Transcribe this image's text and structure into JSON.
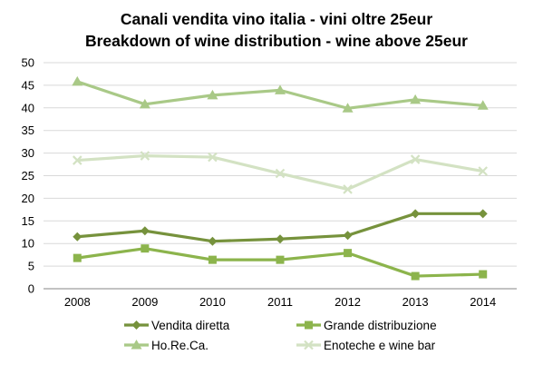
{
  "chart_data": {
    "type": "line",
    "title": "Canali vendita vino italia - vini oltre 25eur",
    "subtitle": "Breakdown of wine distribution - wine above 25eur",
    "xlabel": "",
    "ylabel": "",
    "categories": [
      "2008",
      "2009",
      "2010",
      "2011",
      "2012",
      "2013",
      "2014"
    ],
    "ylim": [
      0,
      50
    ],
    "yticks": [
      0,
      5,
      10,
      15,
      20,
      25,
      30,
      35,
      40,
      45,
      50
    ],
    "grid": "horizontal",
    "legend": "bottom",
    "series": [
      {
        "name": "Vendita diretta",
        "values": [
          11.5,
          12.8,
          10.5,
          11.0,
          11.8,
          16.6,
          16.6
        ],
        "color": "#76923c",
        "marker": "diamond"
      },
      {
        "name": "Grande distribuzione",
        "values": [
          6.8,
          8.9,
          6.4,
          6.4,
          7.9,
          2.8,
          3.2
        ],
        "color": "#8cb44c",
        "marker": "square"
      },
      {
        "name": "Ho.Re.Ca.",
        "values": [
          45.8,
          40.8,
          42.8,
          43.9,
          39.9,
          41.8,
          40.5
        ],
        "color": "#a9c987",
        "marker": "triangle"
      },
      {
        "name": "Enoteche e wine bar",
        "values": [
          28.4,
          29.4,
          29.1,
          25.5,
          22.0,
          28.6,
          26.0
        ],
        "color": "#d3e2c3",
        "marker": "x"
      }
    ]
  }
}
